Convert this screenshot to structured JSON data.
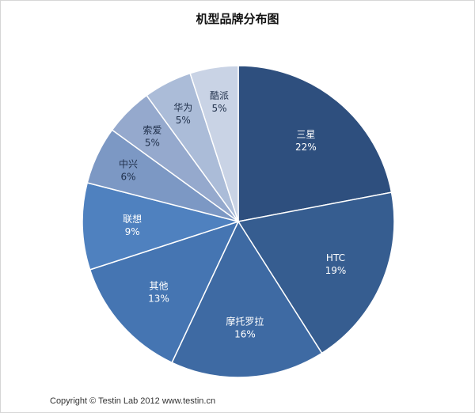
{
  "chart_data": {
    "type": "pie",
    "title": "机型品牌分布图",
    "slices": [
      {
        "label": "三星",
        "value": 22,
        "value_label": "22%",
        "color": "#2e4f7e"
      },
      {
        "label": "HTC",
        "value": 19,
        "value_label": "19%",
        "color": "#365d90"
      },
      {
        "label": "摩托罗拉",
        "value": 16,
        "value_label": "16%",
        "color": "#3e6aa3"
      },
      {
        "label": "其他",
        "value": 13,
        "value_label": "13%",
        "color": "#4575b2"
      },
      {
        "label": "联想",
        "value": 9,
        "value_label": "9%",
        "color": "#4f81bf"
      },
      {
        "label": "中兴",
        "value": 6,
        "value_label": "6%",
        "color": "#7c98c4"
      },
      {
        "label": "索爱",
        "value": 5,
        "value_label": "5%",
        "color": "#95a9cd"
      },
      {
        "label": "华为",
        "value": 5,
        "value_label": "5%",
        "color": "#abbcd8"
      },
      {
        "label": "酷派",
        "value": 5,
        "value_label": "5%",
        "color": "#c9d3e5"
      }
    ],
    "start": "12 o'clock",
    "direction": "clockwise"
  },
  "footer": {
    "copyright": "Copyright © Testin Lab 2012   www.testin.cn"
  }
}
